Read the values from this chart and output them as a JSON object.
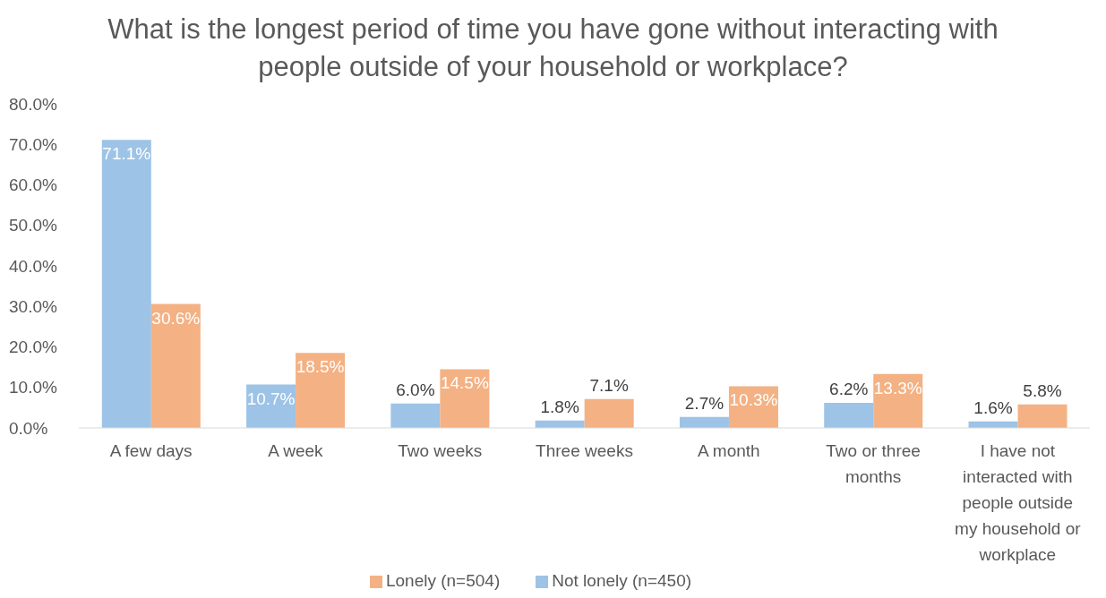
{
  "chart_data": {
    "type": "bar",
    "title": "What is the longest period of time you have gone without interacting with people outside of your household or workplace?",
    "categories": [
      "A few days",
      "A week",
      "Two weeks",
      "Three weeks",
      "A month",
      "Two or three months",
      "I have not interacted with people outside my household or workplace"
    ],
    "series": [
      {
        "name": "Not lonely (n=450)",
        "color": "#9dc3e6",
        "values": [
          71.1,
          10.7,
          6.0,
          1.8,
          2.7,
          6.2,
          1.6
        ],
        "value_labels": [
          "71.1%",
          "10.7%",
          "6.0%",
          "1.8%",
          "2.7%",
          "6.2%",
          "1.6%"
        ]
      },
      {
        "name": "Lonely (n=504)",
        "color": "#f4b183",
        "values": [
          30.6,
          18.5,
          14.5,
          7.1,
          10.3,
          13.3,
          5.8
        ],
        "value_labels": [
          "30.6%",
          "18.5%",
          "14.5%",
          "7.1%",
          "10.3%",
          "13.3%",
          "5.8%"
        ]
      }
    ],
    "ylim": [
      0,
      80
    ],
    "yticks": [
      {
        "value": 0,
        "label": "0.0%"
      },
      {
        "value": 10,
        "label": "10.0%"
      },
      {
        "value": 20,
        "label": "20.0%"
      },
      {
        "value": 30,
        "label": "30.0%"
      },
      {
        "value": 40,
        "label": "40.0%"
      },
      {
        "value": 50,
        "label": "50.0%"
      },
      {
        "value": 60,
        "label": "60.0%"
      },
      {
        "value": 70,
        "label": "70.0%"
      },
      {
        "value": 80,
        "label": "80.0%"
      }
    ],
    "grid": false,
    "legend": "bottom"
  }
}
